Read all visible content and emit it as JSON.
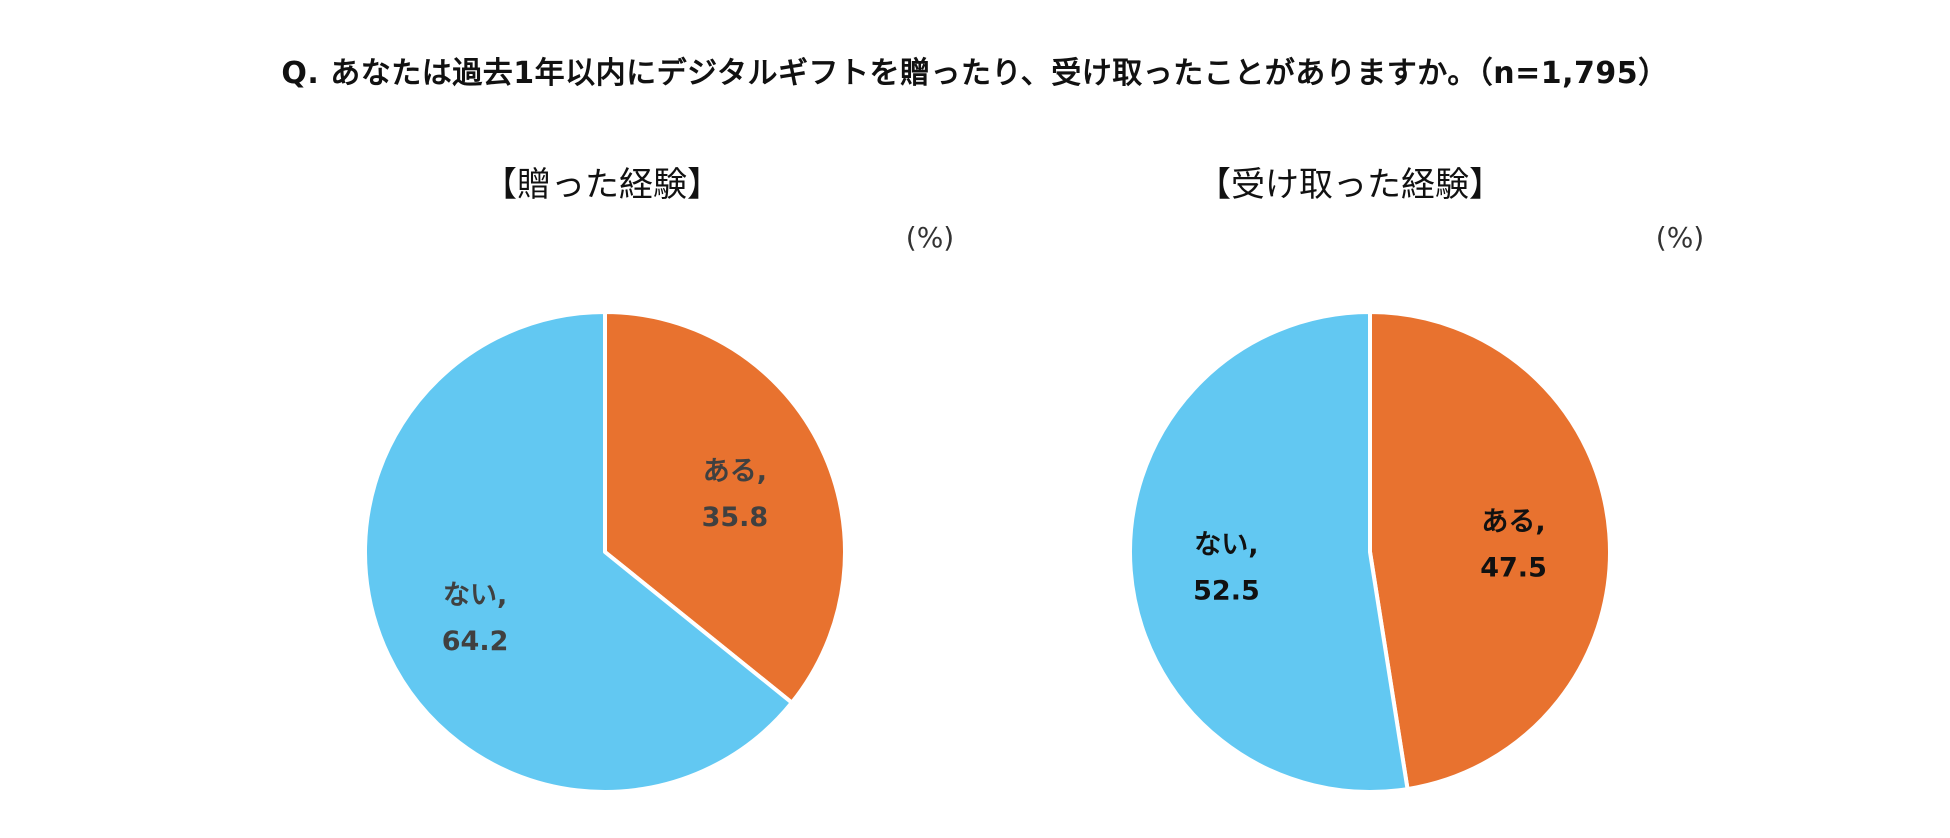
{
  "page_title": "Q. あなたは過去1年以内にデジタルギフトを贈ったり、受け取ったことがありますか。（n=1,795）",
  "colors": {
    "yes": "#E8722F",
    "no": "#62C8F2",
    "label_dark": "#404040",
    "label_black": "#111111"
  },
  "chart_data": [
    {
      "type": "pie",
      "title": "【贈った経験】",
      "unit": "(%)",
      "slices": [
        {
          "label": "ある,",
          "value": 35.8,
          "value_text": "35.8",
          "color": "#E8722F",
          "label_color": "#404040"
        },
        {
          "label": "ない,",
          "value": 64.2,
          "value_text": "64.2",
          "color": "#62C8F2",
          "label_color": "#404040"
        }
      ]
    },
    {
      "type": "pie",
      "title": "【受け取った経験】",
      "unit": "(%)",
      "slices": [
        {
          "label": "ある,",
          "value": 47.5,
          "value_text": "47.5",
          "color": "#E8722F",
          "label_color": "#111111"
        },
        {
          "label": "ない,",
          "value": 52.5,
          "value_text": "52.5",
          "color": "#62C8F2",
          "label_color": "#111111"
        }
      ]
    }
  ]
}
